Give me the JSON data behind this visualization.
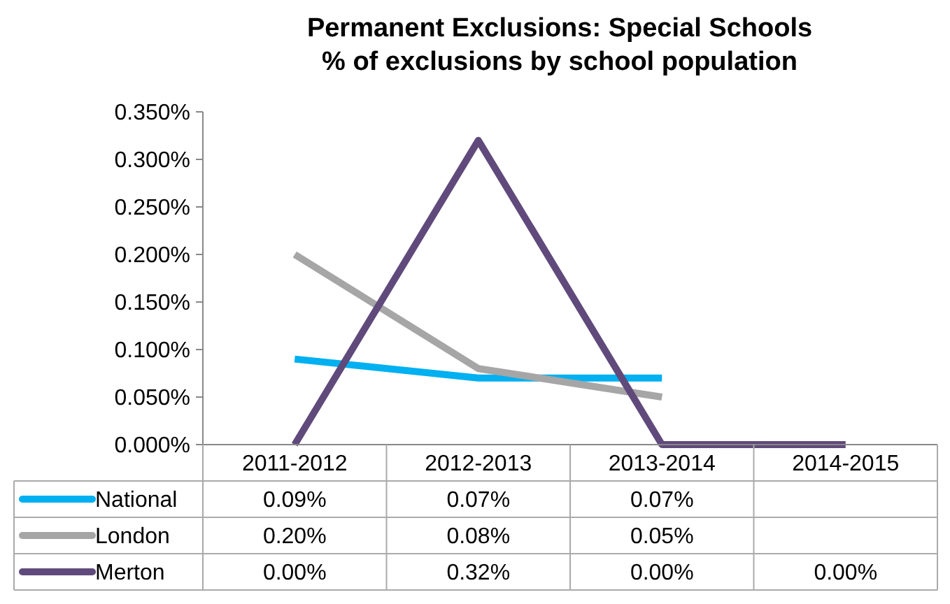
{
  "chart_data": {
    "type": "line",
    "title": "Permanent Exclusions: Special Schools\n% of exclusions by school population",
    "categories": [
      "2011-2012",
      "2012-2013",
      "2013-2014",
      "2014-2015"
    ],
    "series": [
      {
        "name": "National",
        "color": "#00b0f0",
        "values": [
          0.09,
          0.07,
          0.07,
          null
        ],
        "value_labels": [
          "0.09%",
          "0.07%",
          "0.07%",
          null
        ]
      },
      {
        "name": "London",
        "color": "#a6a6a6",
        "values": [
          0.2,
          0.08,
          0.05,
          null
        ],
        "value_labels": [
          "0.20%",
          "0.08%",
          "0.05%",
          null
        ]
      },
      {
        "name": "Merton",
        "color": "#604a7b",
        "values": [
          0,
          0.32,
          0,
          0
        ],
        "value_labels": [
          "0.00%",
          "0.32%",
          "0.00%",
          "0.00%"
        ]
      }
    ],
    "ylim": [
      0,
      0.35
    ],
    "yticks": [
      {
        "value": 0,
        "label": "0.000%"
      },
      {
        "value": 0.05,
        "label": "0.050%"
      },
      {
        "value": 0.1,
        "label": "0.100%"
      },
      {
        "value": 0.15,
        "label": "0.150%"
      },
      {
        "value": 0.2,
        "label": "0.200%"
      },
      {
        "value": 0.25,
        "label": "0.250%"
      },
      {
        "value": 0.3,
        "label": "0.300%"
      },
      {
        "value": 0.35,
        "label": "0.350%"
      }
    ],
    "grid": false,
    "legend": "bottom",
    "marker": "none",
    "line_style": "solid"
  }
}
